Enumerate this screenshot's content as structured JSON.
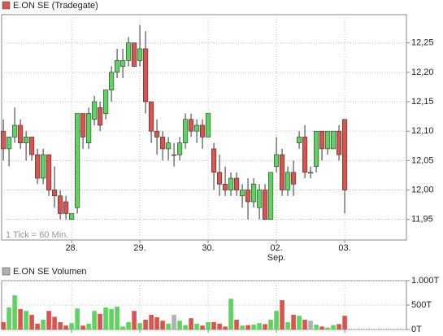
{
  "chart_data": [
    {
      "type": "candlestick",
      "annotation": "1 Tick = 60 Min.",
      "up_color": "#5fd35f",
      "down_color": "#d9534f",
      "flat_color": "#b0b0b0",
      "x": [
        0,
        1,
        2,
        3,
        4,
        5,
        6,
        7,
        8,
        9,
        10,
        11,
        12,
        13,
        14,
        15,
        16,
        17,
        18,
        19,
        20,
        21,
        22,
        23,
        24,
        25,
        26,
        27,
        28,
        29,
        30,
        31,
        32,
        33,
        34,
        35,
        36,
        37,
        38,
        39,
        40,
        41,
        42,
        43,
        44,
        45,
        46,
        47,
        48,
        49,
        50,
        51,
        52,
        53,
        54,
        55,
        56,
        57,
        58,
        59,
        60
      ],
      "series": [
        {
          "name": "E.ON SE (Tradegate)",
          "color": "#d9534f",
          "open": [
            12.1,
            12.07,
            12.09,
            12.11,
            12.08,
            12.09,
            12.06,
            12.02,
            12.06,
            12.0,
            11.99,
            11.98,
            11.95,
            11.97,
            12.13,
            12.08,
            12.12,
            12.14,
            12.13,
            12.17,
            12.2,
            12.21,
            12.22,
            12.25,
            12.22,
            12.24,
            12.15,
            12.1,
            12.09,
            12.07,
            12.06,
            12.06,
            12.08,
            12.12,
            12.1,
            12.11,
            12.09,
            12.07,
            12.03,
            12.01,
            12.0,
            12.02,
            11.99,
            12.0,
            11.98,
            11.97,
            12.0,
            11.95,
            12.04,
            12.06,
            12.0,
            12.03,
            12.08,
            12.09,
            12.03,
            12.04,
            12.1,
            12.07,
            12.07,
            12.1,
            12.12
          ],
          "high": [
            12.12,
            12.09,
            12.14,
            12.12,
            12.1,
            12.09,
            12.07,
            12.07,
            12.06,
            12.04,
            12.0,
            11.99,
            11.96,
            12.13,
            12.13,
            12.14,
            12.16,
            12.15,
            12.17,
            12.21,
            12.24,
            12.24,
            12.26,
            12.25,
            12.28,
            12.27,
            12.15,
            12.12,
            12.1,
            12.09,
            12.08,
            12.09,
            12.13,
            12.13,
            12.12,
            12.12,
            12.13,
            12.08,
            12.06,
            12.04,
            12.03,
            12.03,
            12.01,
            12.02,
            12.02,
            12.01,
            12.01,
            12.03,
            12.09,
            12.07,
            12.04,
            12.05,
            12.1,
            12.11,
            12.04,
            12.1,
            12.1,
            12.1,
            12.1,
            12.11,
            12.12
          ],
          "low": [
            12.05,
            12.04,
            12.08,
            12.07,
            12.05,
            12.05,
            12.01,
            12.01,
            11.99,
            11.97,
            11.95,
            11.95,
            11.95,
            11.96,
            12.07,
            12.07,
            12.11,
            12.1,
            12.12,
            12.15,
            12.19,
            12.19,
            12.21,
            12.21,
            12.21,
            12.13,
            12.08,
            12.06,
            12.05,
            12.05,
            12.04,
            12.05,
            12.07,
            12.09,
            12.08,
            12.07,
            12.09,
            12.0,
            11.99,
            11.99,
            11.99,
            11.99,
            11.97,
            11.95,
            11.97,
            11.95,
            11.95,
            11.95,
            12.03,
            11.99,
            11.99,
            11.99,
            12.07,
            12.02,
            12.02,
            12.03,
            12.05,
            12.06,
            12.07,
            12.05,
            11.96
          ],
          "close": [
            12.07,
            12.09,
            12.11,
            12.08,
            12.09,
            12.06,
            12.02,
            12.06,
            12.0,
            11.99,
            11.96,
            11.96,
            11.96,
            12.13,
            12.09,
            12.13,
            12.15,
            12.11,
            12.17,
            12.2,
            12.22,
            12.22,
            12.25,
            12.21,
            12.24,
            12.15,
            12.1,
            12.09,
            12.07,
            12.08,
            12.06,
            12.08,
            12.12,
            12.1,
            12.11,
            12.09,
            12.13,
            12.03,
            12.01,
            12.0,
            12.02,
            12.0,
            12.0,
            11.98,
            12.01,
            12.0,
            11.95,
            12.03,
            12.06,
            12.0,
            12.03,
            12.01,
            12.09,
            12.03,
            12.03,
            12.1,
            12.07,
            12.1,
            12.1,
            12.06,
            12.0
          ]
        }
      ],
      "xlim": [
        -0.3,
        70.85
      ],
      "xticks": [
        {
          "value": 12,
          "label": "28."
        },
        {
          "value": 24,
          "label": "29."
        },
        {
          "value": 36,
          "label": "30."
        },
        {
          "value": 48,
          "label": "02."
        },
        {
          "value": 60,
          "label": "03."
        }
      ],
      "month_label": {
        "value": 48,
        "label": "Sep."
      },
      "ylim": [
        11.915,
        12.298
      ],
      "yticks": [
        {
          "value": 11.95,
          "label": "11,95"
        },
        {
          "value": 12.0,
          "label": "12,00"
        },
        {
          "value": 12.05,
          "label": "12,05"
        },
        {
          "value": 12.1,
          "label": "12,10"
        },
        {
          "value": 12.15,
          "label": "12,15"
        },
        {
          "value": 12.2,
          "label": "12,20"
        },
        {
          "value": 12.25,
          "label": "12,25"
        }
      ],
      "grid": true
    },
    {
      "type": "bar",
      "up_color": "#5fd35f",
      "down_color": "#d9534f",
      "flat_color": "#b0b0b0",
      "x": [
        0,
        1,
        2,
        3,
        4,
        5,
        6,
        7,
        8,
        9,
        10,
        11,
        12,
        13,
        14,
        15,
        16,
        17,
        18,
        19,
        20,
        21,
        22,
        23,
        24,
        25,
        26,
        27,
        28,
        29,
        30,
        31,
        32,
        33,
        34,
        35,
        36,
        37,
        38,
        39,
        40,
        41,
        42,
        43,
        44,
        45,
        46,
        47,
        48,
        49,
        50,
        51,
        52,
        53,
        54,
        55,
        56,
        57,
        58,
        59,
        60
      ],
      "series": [
        {
          "name": "E.ON SE Volumen",
          "color": "#b0b0b0",
          "values": [
            150,
            450,
            700,
            420,
            380,
            300,
            120,
            200,
            380,
            260,
            150,
            80,
            130,
            430,
            80,
            120,
            380,
            320,
            450,
            420,
            470,
            60,
            150,
            380,
            130,
            200,
            300,
            250,
            180,
            120,
            300,
            180,
            90,
            230,
            120,
            80,
            150,
            150,
            120,
            60,
            630,
            200,
            80,
            90,
            100,
            130,
            110,
            200,
            380,
            600,
            150,
            300,
            280,
            200,
            180,
            100,
            60,
            40,
            90,
            110,
            280
          ]
        }
      ],
      "xlim": [
        -0.3,
        70.85
      ],
      "xticks": [
        12,
        24,
        36,
        48,
        60
      ],
      "ylim": [
        0,
        1000
      ],
      "yticks": [
        {
          "value": 0,
          "label": "0T"
        },
        {
          "value": 500,
          "label": "500T"
        },
        {
          "value": 1000,
          "label": "1.000T"
        }
      ],
      "grid": true
    }
  ]
}
